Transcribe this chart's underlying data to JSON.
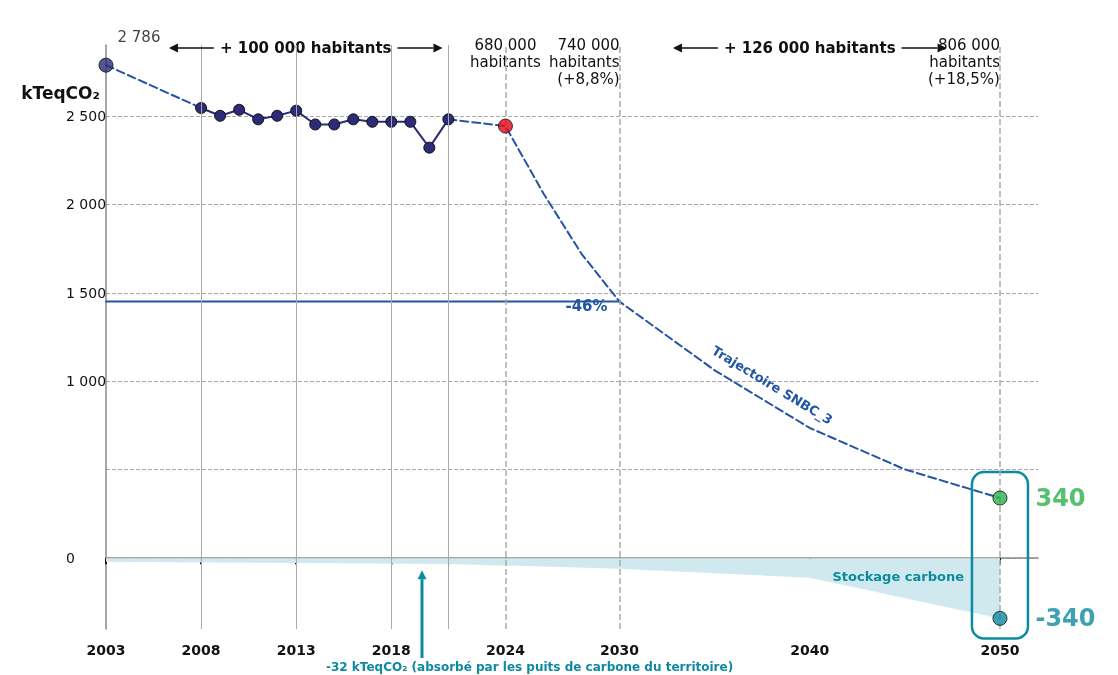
{
  "chart_data": {
    "type": "line",
    "ylabel": "kTeqCO₂",
    "xlim": [
      2003,
      2052
    ],
    "xticks": [
      2003,
      2008,
      2013,
      2018,
      {
        "value": 2021,
        "label": null
      },
      2024,
      2030,
      2040,
      2050
    ],
    "ylim": [
      -400,
      2900
    ],
    "yticks": [
      0,
      {
        "value": 500,
        "label": null
      },
      {
        "value": 1000,
        "label": "1 000"
      },
      {
        "value": 1500,
        "label": "1 500"
      },
      {
        "value": 2000,
        "label": "2 000"
      },
      {
        "value": 2500,
        "label": "2 500"
      }
    ],
    "grid": "y",
    "legend": false,
    "series": [
      {
        "type": "area",
        "name": "Stockage carbone",
        "color": "#cfe9ee",
        "x": [
          2003,
          2021,
          2030,
          2040,
          2050
        ],
        "values": [
          -20,
          -32,
          -60,
          -110,
          -340
        ]
      },
      {
        "color": "#2455a4",
        "line_style": "dashed",
        "marker": "none",
        "x": [
          2003,
          2008
        ],
        "values": [
          2786,
          2544
        ]
      },
      {
        "color": "#2d2a78",
        "line_style": "solid",
        "marker": "circle",
        "x": [
          2008,
          2009,
          2010,
          2011,
          2012,
          2013,
          2014,
          2015,
          2016,
          2017,
          2018,
          2019,
          2020,
          2021
        ],
        "values": [
          2544,
          2500,
          2534,
          2480,
          2500,
          2529,
          2451,
          2451,
          2480,
          2466,
          2466,
          2466,
          2320,
          2480
        ]
      },
      {
        "name": "Trajectoire SNBC_3",
        "color": "#2455a4",
        "line_style": "dashed",
        "marker": "none",
        "x": [
          2021,
          2024,
          2026,
          2028,
          2030,
          2035,
          2040,
          2045,
          2050
        ],
        "values": [
          2480,
          2442,
          2061,
          1720,
          1450,
          1062,
          736,
          502,
          340
        ]
      },
      {
        "color": "#2455a4",
        "line_style": "solid",
        "marker": "none",
        "x": [
          2003,
          2030
        ],
        "values": [
          1450,
          1450
        ]
      },
      {
        "type": "scatter",
        "marker": "circle",
        "x": [
          2003,
          2024,
          2050,
          2050
        ],
        "values": [
          2786,
          2442,
          340,
          -340
        ],
        "colors": [
          "#2d2a78",
          "#e30613",
          "#2ab24a",
          "#0e8aa0"
        ],
        "value_labels": [
          "2 786",
          null,
          "340",
          "-340"
        ]
      }
    ],
    "ref_lines": [
      {
        "axis": "x",
        "value": 2008,
        "line_style": "solid",
        "color": "#aaaaaa"
      },
      {
        "axis": "x",
        "value": 2013,
        "line_style": "solid",
        "color": "#aaaaaa"
      },
      {
        "axis": "x",
        "value": 2018,
        "line_style": "solid",
        "color": "#aaaaaa"
      },
      {
        "axis": "x",
        "value": 2021,
        "line_style": "solid",
        "color": "#aaaaaa"
      },
      {
        "axis": "x",
        "value": 2024,
        "line_style": "dashed",
        "color": "#aaaaaa"
      },
      {
        "axis": "x",
        "value": 2030,
        "line_style": "dashed",
        "color": "#aaaaaa"
      },
      {
        "axis": "x",
        "value": 2050,
        "line_style": "dashed",
        "color": "#aaaaaa"
      }
    ],
    "annotations": [
      "+ 100 000 habitants",
      {
        "text": "680 000\nhabitants",
        "x": 2024
      },
      {
        "text": "740 000\nhabitants\n(+8,8%)",
        "x": 2030
      },
      "+ 126 000 habitants",
      {
        "text": "806 000\nhabitants\n(+18,5%)",
        "x": 2050
      },
      {
        "text": "-46%",
        "x": 2030,
        "y": 1450
      },
      "-32 kTeqCO₂ (absorbé par les puits de carbone du territoire)"
    ]
  }
}
